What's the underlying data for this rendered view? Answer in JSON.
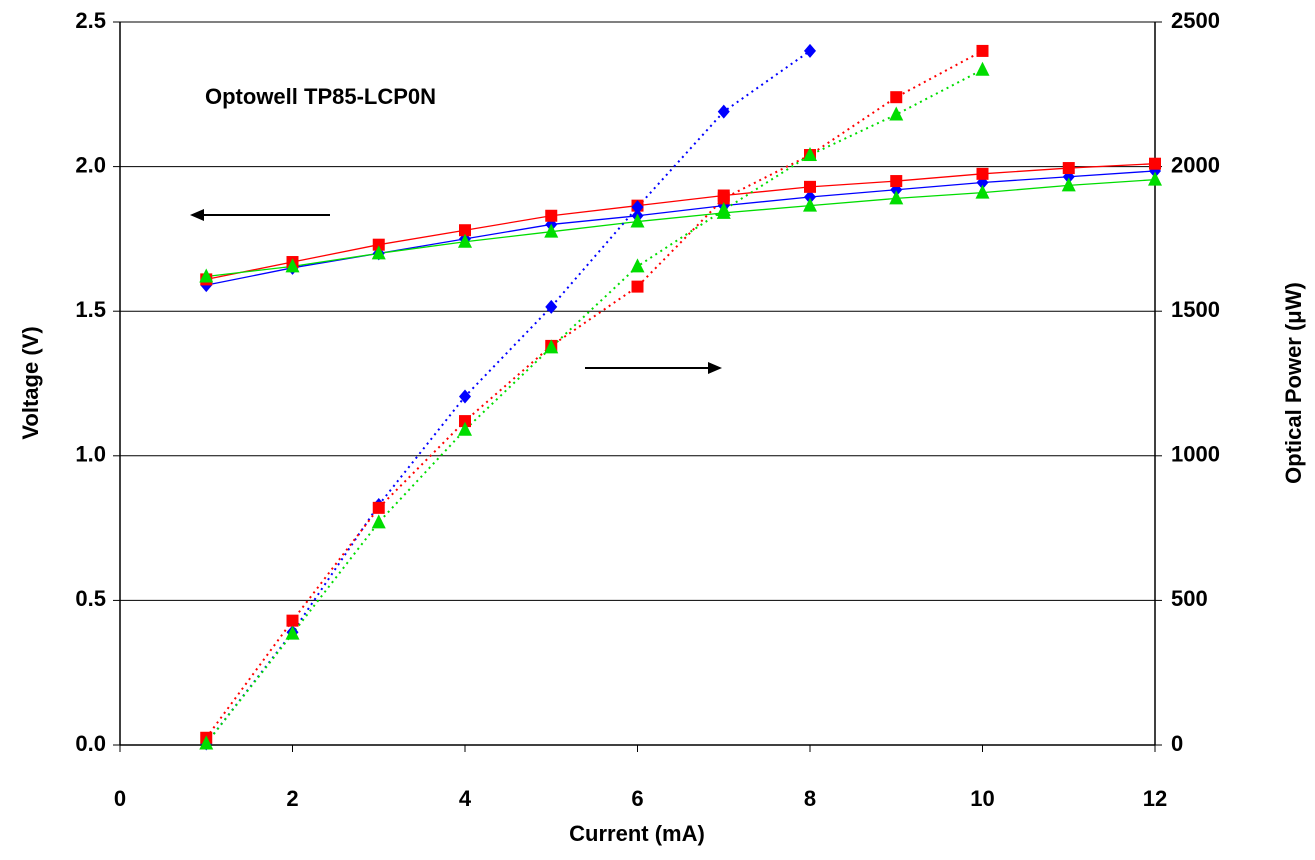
{
  "chart_data": {
    "type": "line",
    "annotation": "Optowell TP85-LCP0N",
    "xlabel": "Current (mA)",
    "ylabel": "Voltage (V)",
    "y2label": "Optical Power (μW)",
    "x": [
      1,
      2,
      3,
      4,
      5,
      6,
      7,
      8,
      9,
      10,
      11,
      12
    ],
    "xlim": [
      0,
      12
    ],
    "xticks": [
      0,
      2,
      4,
      6,
      8,
      10,
      12
    ],
    "ylim": [
      0,
      2.5
    ],
    "yticks": [
      {
        "value": 0,
        "label": "0.0"
      },
      0.5,
      {
        "value": 1,
        "label": "1.0"
      },
      1.5,
      {
        "value": 2,
        "label": "2.0"
      },
      2.5
    ],
    "y2lim": [
      0,
      2500
    ],
    "y2ticks": [
      0,
      500,
      1000,
      1500,
      2000,
      2500
    ],
    "grid": true,
    "series": [
      {
        "color": "#0000ff",
        "marker": "diamond",
        "line_style": "solid",
        "values": [
          1.59,
          1.65,
          1.7,
          1.75,
          1.8,
          1.83,
          1.865,
          1.895,
          1.92,
          1.945,
          1.965,
          1.985
        ]
      },
      {
        "color": "#ff0000",
        "marker": "square",
        "line_style": "solid",
        "values": [
          1.61,
          1.67,
          1.73,
          1.78,
          1.83,
          1.865,
          1.9,
          1.93,
          1.95,
          1.975,
          1.995,
          2.01
        ]
      },
      {
        "color": "#00dd00",
        "marker": "triangle",
        "line_style": "solid",
        "values": [
          1.62,
          1.655,
          1.7,
          1.74,
          1.775,
          1.81,
          1.84,
          1.865,
          1.89,
          1.91,
          1.935,
          1.955
        ]
      },
      {
        "color": "#0000ff",
        "marker": "diamond",
        "line_style": "dotted",
        "axis": "y2",
        "values": [
          5,
          390,
          830,
          1205,
          1515,
          1860,
          2190,
          2400,
          null,
          null,
          null,
          null
        ]
      },
      {
        "color": "#ff0000",
        "marker": "square",
        "line_style": "dotted",
        "axis": "y2",
        "values": [
          25,
          430,
          820,
          1120,
          1380,
          1585,
          1890,
          2040,
          2240,
          2400,
          null,
          null
        ]
      },
      {
        "color": "#00dd00",
        "marker": "triangle",
        "line_style": "dotted",
        "axis": "y2",
        "values": [
          5,
          385,
          770,
          1090,
          1375,
          1655,
          1850,
          2040,
          2180,
          2335,
          null,
          null
        ]
      }
    ]
  }
}
